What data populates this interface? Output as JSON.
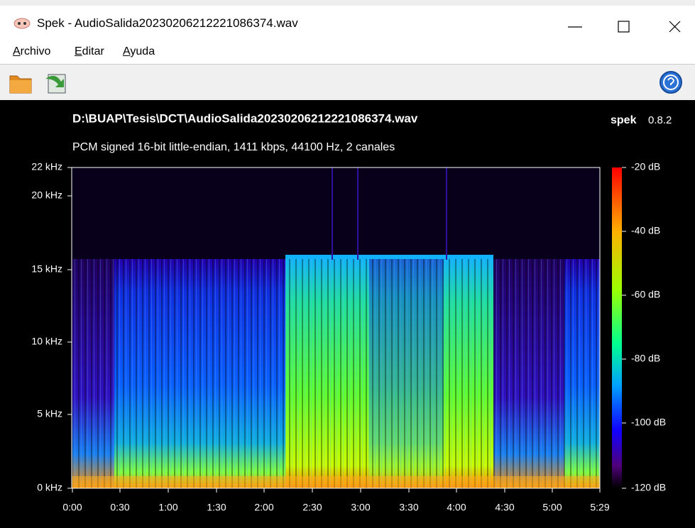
{
  "window": {
    "title": "Spek - AudioSalida20230206212221086374.wav"
  },
  "menu": [
    "Archivo",
    "Editar",
    "Ayuda"
  ],
  "spectrogram": {
    "file": "D:\\BUAP\\Tesis\\DCT\\AudioSalida20230206212221086374.wav",
    "app": "spek",
    "version": "0.8.2",
    "info": "PCM signed 16-bit little-endian, 1411 kbps, 44100 Hz, 2 canales",
    "frequency_labels": [
      "22 kHz",
      "20 kHz",
      "15 kHz",
      "10 kHz",
      "5 kHz",
      "0 kHz"
    ],
    "time_labels": [
      "0:00",
      "0:30",
      "1:00",
      "1:30",
      "2:00",
      "2:30",
      "3:00",
      "3:30",
      "4:00",
      "4:30",
      "5:00",
      "5:29"
    ],
    "level_labels": [
      "-20 dB",
      "-40 dB",
      "-60 dB",
      "-80 dB",
      "-100 dB",
      "-120 dB"
    ]
  }
}
